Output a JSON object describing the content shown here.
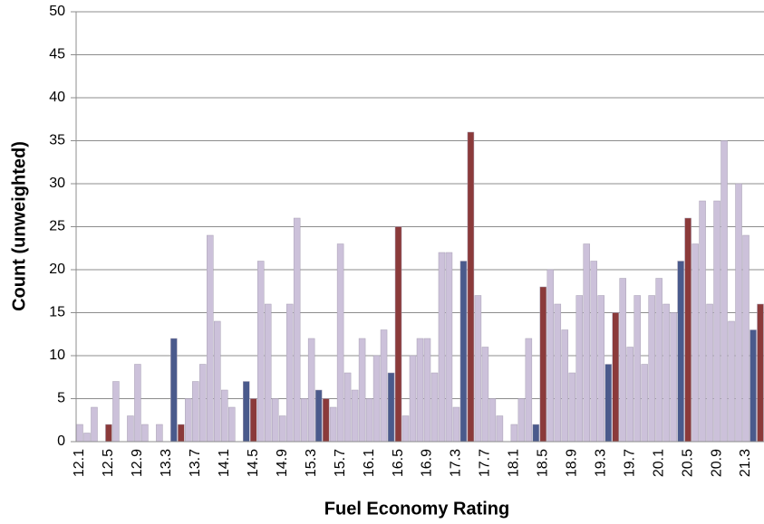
{
  "chart_data": {
    "type": "bar",
    "x_label": "Fuel Economy Rating",
    "y_label": "Count (unweighted)",
    "categories": [
      "12.1",
      null,
      null,
      null,
      "12.5",
      null,
      null,
      null,
      "12.9",
      null,
      null,
      null,
      "13.3",
      null,
      null,
      null,
      "13.7",
      null,
      null,
      null,
      "14.1",
      null,
      null,
      null,
      "14.5",
      null,
      null,
      null,
      "14.9",
      null,
      null,
      null,
      "15.3",
      null,
      null,
      null,
      "15.7",
      null,
      null,
      null,
      "16.1",
      null,
      null,
      null,
      "16.5",
      null,
      null,
      null,
      "16.9",
      null,
      null,
      null,
      "17.3",
      null,
      null,
      null,
      "17.7",
      null,
      null,
      null,
      "18.1",
      null,
      null,
      null,
      "18.5",
      null,
      null,
      null,
      "18.9",
      null,
      null,
      null,
      "19.3",
      null,
      null,
      null,
      "19.7",
      null,
      null,
      null,
      "20.1",
      null,
      null,
      null,
      "20.5",
      null,
      null,
      null,
      "20.9",
      null,
      null,
      null,
      "21.3",
      null,
      null
    ],
    "values": [
      2,
      1,
      4,
      0,
      2,
      7,
      0,
      3,
      9,
      2,
      0,
      2,
      0,
      12,
      2,
      5,
      7,
      9,
      24,
      14,
      6,
      4,
      0,
      7,
      5,
      21,
      16,
      5,
      3,
      16,
      26,
      5,
      12,
      6,
      5,
      4,
      23,
      8,
      6,
      12,
      5,
      10,
      13,
      8,
      25,
      3,
      10,
      12,
      12,
      8,
      22,
      22,
      4,
      21,
      36,
      17,
      11,
      5,
      3,
      0,
      2,
      5,
      12,
      2,
      18,
      20,
      16,
      13,
      8,
      17,
      23,
      21,
      17,
      9,
      15,
      19,
      11,
      17,
      9,
      17,
      19,
      16,
      15,
      21,
      26,
      23,
      28,
      16,
      28,
      35,
      14,
      30,
      24,
      13,
      16
    ],
    "colors": [
      "#ccc1da",
      "#ccc1da",
      "#ccc1da",
      "#ccc1da",
      "#8b3a3a",
      "#ccc1da",
      "#ccc1da",
      "#ccc1da",
      "#ccc1da",
      "#ccc1da",
      "#ccc1da",
      "#ccc1da",
      "#ccc1da",
      "#4a5a8c",
      "#8b3a3a",
      "#ccc1da",
      "#ccc1da",
      "#ccc1da",
      "#ccc1da",
      "#ccc1da",
      "#ccc1da",
      "#ccc1da",
      "#ccc1da",
      "#4a5a8c",
      "#8b3a3a",
      "#ccc1da",
      "#ccc1da",
      "#ccc1da",
      "#ccc1da",
      "#ccc1da",
      "#ccc1da",
      "#ccc1da",
      "#ccc1da",
      "#4a5a8c",
      "#8b3a3a",
      "#ccc1da",
      "#ccc1da",
      "#ccc1da",
      "#ccc1da",
      "#ccc1da",
      "#ccc1da",
      "#ccc1da",
      "#ccc1da",
      "#4a5a8c",
      "#8b3a3a",
      "#ccc1da",
      "#ccc1da",
      "#ccc1da",
      "#ccc1da",
      "#ccc1da",
      "#ccc1da",
      "#ccc1da",
      "#ccc1da",
      "#4a5a8c",
      "#8b3a3a",
      "#ccc1da",
      "#ccc1da",
      "#ccc1da",
      "#ccc1da",
      "#ccc1da",
      "#ccc1da",
      "#ccc1da",
      "#ccc1da",
      "#4a5a8c",
      "#8b3a3a",
      "#ccc1da",
      "#ccc1da",
      "#ccc1da",
      "#ccc1da",
      "#ccc1da",
      "#ccc1da",
      "#ccc1da",
      "#ccc1da",
      "#4a5a8c",
      "#8b3a3a",
      "#ccc1da",
      "#ccc1da",
      "#ccc1da",
      "#ccc1da",
      "#ccc1da",
      "#ccc1da",
      "#ccc1da",
      "#ccc1da",
      "#4a5a8c",
      "#8b3a3a",
      "#ccc1da",
      "#ccc1da",
      "#ccc1da",
      "#ccc1da",
      "#ccc1da",
      "#ccc1da",
      "#ccc1da",
      "#ccc1da",
      "#4a5a8c",
      "#8b3a3a"
    ],
    "ylim": [
      0,
      50
    ],
    "yticks": [
      0,
      5,
      10,
      15,
      20,
      25,
      30,
      35,
      40,
      45,
      50
    ],
    "grid": true
  }
}
